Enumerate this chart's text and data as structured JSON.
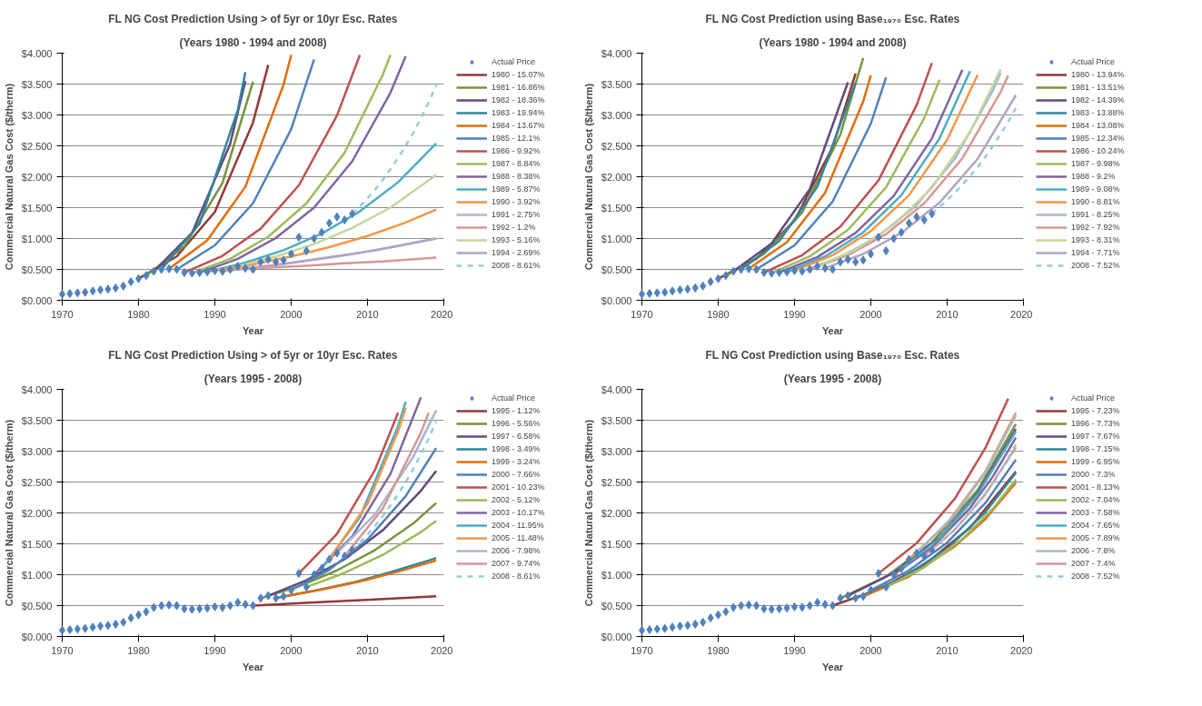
{
  "chart_data": [
    {
      "type": "line",
      "title": "FL NG Cost Prediction Using > of 5yr or 10yr Esc. Rates",
      "subtitle": "(Years 1980 - 1994 and 2008)",
      "xlabel": "Year",
      "ylabel": "Commercial Natural Gas Cost ($/therm)",
      "xlim": [
        1970,
        2020
      ],
      "xticks": [
        1970,
        1980,
        1990,
        2000,
        2010,
        2020
      ],
      "ylim": [
        0,
        4
      ],
      "yticks": [
        {
          "value": 0,
          "label": "$0.000"
        },
        {
          "value": 0.5,
          "label": "$0.500"
        },
        {
          "value": 1,
          "label": "$1.000"
        },
        {
          "value": 1.5,
          "label": "$1.500"
        },
        {
          "value": 2,
          "label": "$2.000"
        },
        {
          "value": 2.5,
          "label": "$2.500"
        },
        {
          "value": 3,
          "label": "$3.000"
        },
        {
          "value": 3.5,
          "label": "$3.500"
        },
        {
          "value": 4,
          "label": "$4.000"
        }
      ],
      "grid": "y",
      "legend": "right",
      "series": [
        {
          "name": "Actual Price",
          "type": "scatter",
          "marker": "diamond",
          "color": "#4f81bd",
          "x": [
            1970,
            1971,
            1972,
            1973,
            1974,
            1975,
            1976,
            1977,
            1978,
            1979,
            1980,
            1981,
            1982,
            1983,
            1984,
            1985,
            1986,
            1987,
            1988,
            1989,
            1990,
            1991,
            1992,
            1993,
            1994,
            1995,
            1996,
            1997,
            1998,
            1999,
            2000,
            2001,
            2002,
            2003,
            2004,
            2005,
            2006,
            2007,
            2008
          ],
          "values": [
            0.1,
            0.11,
            0.12,
            0.13,
            0.15,
            0.17,
            0.18,
            0.2,
            0.23,
            0.3,
            0.35,
            0.4,
            0.47,
            0.5,
            0.51,
            0.5,
            0.45,
            0.44,
            0.45,
            0.46,
            0.48,
            0.47,
            0.5,
            0.55,
            0.52,
            0.5,
            0.62,
            0.66,
            0.62,
            0.65,
            0.75,
            1.02,
            0.8,
            1.0,
            1.1,
            1.25,
            1.35,
            1.3,
            1.4
          ]
        },
        {
          "name": "1980 - 15.07%",
          "color": "#953735",
          "x": [
            1980,
            1985,
            1990,
            1995,
            1997
          ],
          "values": [
            0.35,
            0.71,
            1.43,
            2.88,
            3.81
          ]
        },
        {
          "name": "1981 - 16.86%",
          "color": "#77933c",
          "x": [
            1981,
            1986,
            1991,
            1995
          ],
          "values": [
            0.4,
            0.87,
            1.9,
            3.54
          ]
        },
        {
          "name": "1982 - 18.36%",
          "color": "#604a7b",
          "x": [
            1982,
            1987,
            1992,
            1994
          ],
          "values": [
            0.47,
            1.09,
            2.53,
            3.55
          ]
        },
        {
          "name": "1983 - 19.94%",
          "color": "#31859c",
          "x": [
            1983,
            1988,
            1993,
            1994
          ],
          "values": [
            0.5,
            1.24,
            3.08,
            3.69
          ]
        },
        {
          "name": "1984 - 13.67%",
          "color": "#e46c0a",
          "x": [
            1984,
            1989,
            1994,
            1999,
            2000
          ],
          "values": [
            0.51,
            0.97,
            1.84,
            3.49,
            3.97
          ]
        },
        {
          "name": "1985 - 12.1%",
          "color": "#4f81bd",
          "x": [
            1985,
            1990,
            1995,
            2000,
            2003
          ],
          "values": [
            0.5,
            0.89,
            1.57,
            2.77,
            3.9
          ]
        },
        {
          "name": "1986 - 9.92%",
          "color": "#c0504d",
          "x": [
            1986,
            1991,
            1996,
            2001,
            2006,
            2009
          ],
          "values": [
            0.45,
            0.72,
            1.16,
            1.86,
            2.99,
            3.97
          ]
        },
        {
          "name": "1987 - 8.84%",
          "color": "#9bbb59",
          "x": [
            1987,
            1992,
            1997,
            2002,
            2007,
            2012,
            2013
          ],
          "values": [
            0.44,
            0.67,
            1.03,
            1.57,
            2.39,
            3.65,
            3.97
          ]
        },
        {
          "name": "1988 - 8.38%",
          "color": "#8064a2",
          "x": [
            1988,
            1993,
            1998,
            2003,
            2008,
            2013,
            2015
          ],
          "values": [
            0.45,
            0.67,
            1.01,
            1.5,
            2.25,
            3.36,
            3.95
          ]
        },
        {
          "name": "1989 - 5.87%",
          "color": "#4bacc6",
          "x": [
            1989,
            1994,
            1999,
            2004,
            2009,
            2014,
            2019
          ],
          "values": [
            0.46,
            0.61,
            0.81,
            1.08,
            1.44,
            1.91,
            2.54
          ]
        },
        {
          "name": "1990 - 3.92%",
          "color": "#f79646",
          "x": [
            1990,
            1995,
            2000,
            2005,
            2010,
            2015,
            2019
          ],
          "values": [
            0.48,
            0.58,
            0.71,
            0.86,
            1.04,
            1.26,
            1.47
          ]
        },
        {
          "name": "1991 - 2.75%",
          "color": "#a5b6d6",
          "x": [
            1991,
            1996,
            2001,
            2006,
            2011,
            2016,
            2019
          ],
          "values": [
            0.47,
            0.54,
            0.62,
            0.71,
            0.81,
            0.93,
            1.0
          ]
        },
        {
          "name": "1992 - 1.2%",
          "color": "#d99694",
          "x": [
            1992,
            1997,
            2002,
            2007,
            2012,
            2019
          ],
          "values": [
            0.5,
            0.53,
            0.56,
            0.6,
            0.63,
            0.69
          ]
        },
        {
          "name": "1993 - 5.16%",
          "color": "#c3d69b",
          "x": [
            1993,
            1998,
            2003,
            2008,
            2013,
            2019
          ],
          "values": [
            0.55,
            0.71,
            0.91,
            1.17,
            1.5,
            2.03
          ]
        },
        {
          "name": "1994 - 2.69%",
          "color": "#b3a2c7",
          "x": [
            1994,
            1999,
            2004,
            2009,
            2014,
            2019
          ],
          "values": [
            0.52,
            0.59,
            0.68,
            0.77,
            0.88,
            1.0
          ]
        },
        {
          "name": "2008 - 8.61%",
          "color": "#93cddd",
          "line_style": "dashed",
          "x": [
            2008,
            2009,
            2010,
            2011,
            2012,
            2013,
            2014,
            2015,
            2016,
            2017,
            2018,
            2019
          ],
          "values": [
            1.4,
            1.52,
            1.65,
            1.79,
            1.95,
            2.12,
            2.3,
            2.5,
            2.71,
            2.95,
            3.2,
            3.48
          ]
        }
      ]
    },
    {
      "type": "line",
      "title": "FL NG Cost Prediction using Base₁₉₇₀ Esc. Rates",
      "subtitle": "(Years 1980 - 1994 and 2008)",
      "xlabel": "Year",
      "ylabel": "Commercial Natural Gas Cost ($/therm)",
      "xlim": [
        1970,
        2020
      ],
      "xticks": [
        1970,
        1980,
        1990,
        2000,
        2010,
        2020
      ],
      "ylim": [
        0,
        4
      ],
      "yticks": [
        {
          "value": 0,
          "label": "$0.000"
        },
        {
          "value": 0.5,
          "label": "$0.500"
        },
        {
          "value": 1,
          "label": "$1.000"
        },
        {
          "value": 1.5,
          "label": "$1.500"
        },
        {
          "value": 2,
          "label": "$2.000"
        },
        {
          "value": 2.5,
          "label": "$2.500"
        },
        {
          "value": 3,
          "label": "$3.000"
        },
        {
          "value": 3.5,
          "label": "$3.500"
        },
        {
          "value": 4,
          "label": "$4.000"
        }
      ],
      "grid": "y",
      "legend": "right",
      "series": [
        {
          "name": "Actual Price",
          "type": "scatter",
          "marker": "diamond",
          "color": "#4f81bd",
          "x": [
            1970,
            1971,
            1972,
            1973,
            1974,
            1975,
            1976,
            1977,
            1978,
            1979,
            1980,
            1981,
            1982,
            1983,
            1984,
            1985,
            1986,
            1987,
            1988,
            1989,
            1990,
            1991,
            1992,
            1993,
            1994,
            1995,
            1996,
            1997,
            1998,
            1999,
            2000,
            2001,
            2002,
            2003,
            2004,
            2005,
            2006,
            2007,
            2008
          ],
          "values": [
            0.1,
            0.11,
            0.12,
            0.13,
            0.15,
            0.17,
            0.18,
            0.2,
            0.23,
            0.3,
            0.35,
            0.4,
            0.47,
            0.5,
            0.51,
            0.5,
            0.45,
            0.44,
            0.45,
            0.46,
            0.48,
            0.47,
            0.5,
            0.55,
            0.52,
            0.5,
            0.62,
            0.66,
            0.62,
            0.65,
            0.75,
            1.02,
            0.8,
            1.0,
            1.1,
            1.25,
            1.35,
            1.3,
            1.4
          ]
        },
        {
          "name": "1980 - 13.94%",
          "color": "#953735",
          "x": [
            1980,
            1985,
            1990,
            1995,
            1998
          ],
          "values": [
            0.35,
            0.67,
            1.29,
            2.48,
            3.67
          ]
        },
        {
          "name": "1981 - 13.51%",
          "color": "#77933c",
          "x": [
            1981,
            1986,
            1991,
            1996,
            1999
          ],
          "values": [
            0.4,
            0.75,
            1.42,
            2.68,
            3.92
          ]
        },
        {
          "name": "1982 - 14.39%",
          "color": "#604a7b",
          "x": [
            1982,
            1987,
            1992,
            1997
          ],
          "values": [
            0.47,
            0.92,
            1.8,
            3.53
          ]
        },
        {
          "name": "1983 - 13.88%",
          "color": "#31859c",
          "x": [
            1983,
            1988,
            1993,
            1998
          ],
          "values": [
            0.5,
            0.96,
            1.84,
            3.52
          ]
        },
        {
          "name": "1984 - 13.08%",
          "color": "#e46c0a",
          "x": [
            1984,
            1989,
            1994,
            1999,
            2000
          ],
          "values": [
            0.51,
            0.94,
            1.74,
            3.22,
            3.64
          ]
        },
        {
          "name": "1985 - 12.34%",
          "color": "#4f81bd",
          "x": [
            1985,
            1990,
            1995,
            2000,
            2002
          ],
          "values": [
            0.5,
            0.89,
            1.6,
            2.86,
            3.61
          ]
        },
        {
          "name": "1986 - 10.24%",
          "color": "#c0504d",
          "x": [
            1986,
            1991,
            1996,
            2001,
            2006,
            2008
          ],
          "values": [
            0.45,
            0.73,
            1.19,
            1.94,
            3.16,
            3.84
          ]
        },
        {
          "name": "1987 - 9.98%",
          "color": "#9bbb59",
          "x": [
            1987,
            1992,
            1997,
            2002,
            2007,
            2009
          ],
          "values": [
            0.44,
            0.71,
            1.14,
            1.83,
            2.95,
            3.57
          ]
        },
        {
          "name": "1988 - 9.2%",
          "color": "#8064a2",
          "x": [
            1988,
            1993,
            1998,
            2003,
            2008,
            2012
          ],
          "values": [
            0.45,
            0.7,
            1.09,
            1.69,
            2.62,
            3.73
          ]
        },
        {
          "name": "1989 - 9.08%",
          "color": "#4bacc6",
          "x": [
            1989,
            1994,
            1999,
            2004,
            2009,
            2013
          ],
          "values": [
            0.46,
            0.71,
            1.1,
            1.7,
            2.62,
            3.71
          ]
        },
        {
          "name": "1990 - 8.81%",
          "color": "#f79646",
          "x": [
            1990,
            1995,
            2000,
            2005,
            2010,
            2014
          ],
          "values": [
            0.48,
            0.73,
            1.12,
            1.7,
            2.6,
            3.65
          ]
        },
        {
          "name": "1991 - 8.25%",
          "color": "#a5b6d6",
          "x": [
            1991,
            1996,
            2001,
            2006,
            2011,
            2016,
            2017
          ],
          "values": [
            0.47,
            0.7,
            1.04,
            1.54,
            2.29,
            3.4,
            3.68
          ]
        },
        {
          "name": "1992 - 7.92%",
          "color": "#d99694",
          "x": [
            1992,
            1997,
            2002,
            2007,
            2012,
            2017,
            2018
          ],
          "values": [
            0.5,
            0.73,
            1.07,
            1.57,
            2.3,
            3.37,
            3.64
          ]
        },
        {
          "name": "1993 - 8.31%",
          "color": "#c3d69b",
          "x": [
            1993,
            1998,
            2003,
            2008,
            2013,
            2017
          ],
          "values": [
            0.55,
            0.82,
            1.22,
            1.82,
            2.72,
            3.74
          ]
        },
        {
          "name": "1994 - 7.71%",
          "color": "#b3a2c7",
          "x": [
            1994,
            1999,
            2004,
            2009,
            2014,
            2019
          ],
          "values": [
            0.52,
            0.75,
            1.09,
            1.58,
            2.29,
            3.32
          ]
        },
        {
          "name": "2008 - 7.52%",
          "color": "#93cddd",
          "line_style": "dashed",
          "x": [
            2008,
            2009,
            2010,
            2011,
            2012,
            2013,
            2014,
            2015,
            2016,
            2017,
            2018,
            2019
          ],
          "values": [
            1.4,
            1.51,
            1.62,
            1.74,
            1.87,
            2.01,
            2.16,
            2.32,
            2.5,
            2.69,
            2.89,
            3.11
          ]
        }
      ]
    },
    {
      "type": "line",
      "title": "FL NG Cost Prediction Using > of 5yr or 10yr Esc. Rates",
      "subtitle": "(Years 1995 - 2008)",
      "xlabel": "Year",
      "ylabel": "Commercial Natural Gas Cost ($/therm)",
      "xlim": [
        1970,
        2020
      ],
      "xticks": [
        1970,
        1980,
        1990,
        2000,
        2010,
        2020
      ],
      "ylim": [
        0,
        4
      ],
      "yticks": [
        {
          "value": 0,
          "label": "$0.000"
        },
        {
          "value": 0.5,
          "label": "$0.500"
        },
        {
          "value": 1,
          "label": "$1.000"
        },
        {
          "value": 1.5,
          "label": "$1.500"
        },
        {
          "value": 2,
          "label": "$2.000"
        },
        {
          "value": 2.5,
          "label": "$2.500"
        },
        {
          "value": 3,
          "label": "$3.000"
        },
        {
          "value": 3.5,
          "label": "$3.500"
        },
        {
          "value": 4,
          "label": "$4.000"
        }
      ],
      "grid": "y",
      "legend": "right",
      "series": [
        {
          "name": "Actual Price",
          "type": "scatter",
          "marker": "diamond",
          "color": "#4f81bd",
          "x": [
            1970,
            1971,
            1972,
            1973,
            1974,
            1975,
            1976,
            1977,
            1978,
            1979,
            1980,
            1981,
            1982,
            1983,
            1984,
            1985,
            1986,
            1987,
            1988,
            1989,
            1990,
            1991,
            1992,
            1993,
            1994,
            1995,
            1996,
            1997,
            1998,
            1999,
            2000,
            2001,
            2002,
            2003,
            2004,
            2005,
            2006,
            2007,
            2008
          ],
          "values": [
            0.1,
            0.11,
            0.12,
            0.13,
            0.15,
            0.17,
            0.18,
            0.2,
            0.23,
            0.3,
            0.35,
            0.4,
            0.47,
            0.5,
            0.51,
            0.5,
            0.45,
            0.44,
            0.45,
            0.46,
            0.48,
            0.47,
            0.5,
            0.55,
            0.52,
            0.5,
            0.62,
            0.66,
            0.62,
            0.65,
            0.75,
            1.02,
            0.8,
            1.0,
            1.1,
            1.25,
            1.35,
            1.3,
            1.4
          ]
        },
        {
          "name": "1995 - 1.12%",
          "color": "#953735",
          "x": [
            1995,
            2003,
            2011,
            2019
          ],
          "values": [
            0.5,
            0.55,
            0.6,
            0.65
          ]
        },
        {
          "name": "1996 - 5.56%",
          "color": "#77933c",
          "x": [
            1996,
            2001,
            2006,
            2011,
            2016,
            2019
          ],
          "values": [
            0.62,
            0.81,
            1.07,
            1.4,
            1.83,
            2.16
          ]
        },
        {
          "name": "1997 - 6.58%",
          "color": "#604a7b",
          "x": [
            1997,
            2002,
            2007,
            2012,
            2017,
            2019
          ],
          "values": [
            0.66,
            0.91,
            1.25,
            1.72,
            2.36,
            2.68
          ]
        },
        {
          "name": "1998 - 3.49%",
          "color": "#31859c",
          "x": [
            1998,
            2003,
            2008,
            2013,
            2018,
            2019
          ],
          "values": [
            0.62,
            0.74,
            0.87,
            1.04,
            1.23,
            1.27
          ]
        },
        {
          "name": "1999 - 3.24%",
          "color": "#e46c0a",
          "x": [
            1999,
            2004,
            2009,
            2014,
            2019
          ],
          "values": [
            0.65,
            0.76,
            0.89,
            1.05,
            1.23
          ]
        },
        {
          "name": "2000 - 7.66%",
          "color": "#4f81bd",
          "x": [
            2000,
            2005,
            2010,
            2015,
            2019
          ],
          "values": [
            0.75,
            1.08,
            1.57,
            2.27,
            3.05
          ]
        },
        {
          "name": "2001 - 10.23%",
          "color": "#c0504d",
          "x": [
            2001,
            2006,
            2011,
            2014
          ],
          "values": [
            1.02,
            1.66,
            2.7,
            3.62
          ]
        },
        {
          "name": "2002 - 5.12%",
          "color": "#9bbb59",
          "x": [
            2002,
            2007,
            2012,
            2017,
            2019
          ],
          "values": [
            0.8,
            1.03,
            1.32,
            1.69,
            1.87
          ]
        },
        {
          "name": "2003 - 10.17%",
          "color": "#8064a2",
          "x": [
            2003,
            2008,
            2013,
            2017
          ],
          "values": [
            1.0,
            1.62,
            2.63,
            3.87
          ]
        },
        {
          "name": "2004 - 11.95%",
          "color": "#4bacc6",
          "x": [
            2004,
            2009,
            2014,
            2015
          ],
          "values": [
            1.1,
            1.93,
            3.4,
            3.8
          ]
        },
        {
          "name": "2005 - 11.48%",
          "color": "#f79646",
          "x": [
            2005,
            2010,
            2014,
            2015
          ],
          "values": [
            1.25,
            2.15,
            3.32,
            3.7
          ]
        },
        {
          "name": "2006 - 7.98%",
          "color": "#a5b6d6",
          "x": [
            2006,
            2011,
            2016,
            2019
          ],
          "values": [
            1.35,
            1.98,
            2.91,
            3.66
          ]
        },
        {
          "name": "2007 - 9.74%",
          "color": "#d99694",
          "x": [
            2007,
            2012,
            2017,
            2018
          ],
          "values": [
            1.3,
            2.07,
            3.3,
            3.62
          ]
        },
        {
          "name": "2008 - 8.61%",
          "color": "#93cddd",
          "line_style": "dashed",
          "x": [
            2008,
            2009,
            2010,
            2011,
            2012,
            2013,
            2014,
            2015,
            2016,
            2017,
            2018,
            2019
          ],
          "values": [
            1.4,
            1.52,
            1.65,
            1.79,
            1.95,
            2.12,
            2.3,
            2.5,
            2.71,
            2.95,
            3.2,
            3.48
          ]
        }
      ]
    },
    {
      "type": "line",
      "title": "FL NG Cost Prediction using Base₁₉₇₀ Esc. Rates",
      "subtitle": "(Years 1995 - 2008)",
      "xlabel": "Year",
      "ylabel": "Commercial Natural Gas Cost ($/therm)",
      "xlim": [
        1970,
        2020
      ],
      "xticks": [
        1970,
        1980,
        1990,
        2000,
        2010,
        2020
      ],
      "ylim": [
        0,
        4
      ],
      "yticks": [
        {
          "value": 0,
          "label": "$0.000"
        },
        {
          "value": 0.5,
          "label": "$0.500"
        },
        {
          "value": 1,
          "label": "$1.000"
        },
        {
          "value": 1.5,
          "label": "$1.500"
        },
        {
          "value": 2,
          "label": "$2.000"
        },
        {
          "value": 2.5,
          "label": "$2.500"
        },
        {
          "value": 3,
          "label": "$3.000"
        },
        {
          "value": 3.5,
          "label": "$3.500"
        },
        {
          "value": 4,
          "label": "$4.000"
        }
      ],
      "grid": "y",
      "legend": "right",
      "series": [
        {
          "name": "Actual Price",
          "type": "scatter",
          "marker": "diamond",
          "color": "#4f81bd",
          "x": [
            1970,
            1971,
            1972,
            1973,
            1974,
            1975,
            1976,
            1977,
            1978,
            1979,
            1980,
            1981,
            1982,
            1983,
            1984,
            1985,
            1986,
            1987,
            1988,
            1989,
            1990,
            1991,
            1992,
            1993,
            1994,
            1995,
            1996,
            1997,
            1998,
            1999,
            2000,
            2001,
            2002,
            2003,
            2004,
            2005,
            2006,
            2007,
            2008
          ],
          "values": [
            0.1,
            0.11,
            0.12,
            0.13,
            0.15,
            0.17,
            0.18,
            0.2,
            0.23,
            0.3,
            0.35,
            0.4,
            0.47,
            0.5,
            0.51,
            0.5,
            0.45,
            0.44,
            0.45,
            0.46,
            0.48,
            0.47,
            0.5,
            0.55,
            0.52,
            0.5,
            0.62,
            0.66,
            0.62,
            0.65,
            0.75,
            1.02,
            0.8,
            1.0,
            1.1,
            1.25,
            1.35,
            1.3,
            1.4
          ]
        },
        {
          "name": "1995 - 7.23%",
          "color": "#953735",
          "x": [
            1995,
            2001,
            2007,
            2013,
            2019
          ],
          "values": [
            0.5,
            0.76,
            1.16,
            1.76,
            2.67
          ]
        },
        {
          "name": "1996 - 7.73%",
          "color": "#77933c",
          "x": [
            1996,
            2002,
            2008,
            2014,
            2019
          ],
          "values": [
            0.62,
            0.97,
            1.52,
            2.37,
            3.44
          ]
        },
        {
          "name": "1997 - 7.67%",
          "color": "#604a7b",
          "x": [
            1997,
            2003,
            2009,
            2014,
            2019
          ],
          "values": [
            0.66,
            1.03,
            1.6,
            2.32,
            3.36
          ]
        },
        {
          "name": "1998 - 7.15%",
          "color": "#31859c",
          "x": [
            1998,
            2004,
            2010,
            2015,
            2019
          ],
          "values": [
            0.62,
            0.94,
            1.42,
            2.01,
            2.65
          ]
        },
        {
          "name": "1999 - 6.95%",
          "color": "#e46c0a",
          "x": [
            1999,
            2005,
            2011,
            2015,
            2019
          ],
          "values": [
            0.65,
            0.97,
            1.46,
            1.9,
            2.49
          ]
        },
        {
          "name": "2000 - 7.3%",
          "color": "#4f81bd",
          "x": [
            2000,
            2005,
            2010,
            2015,
            2019
          ],
          "values": [
            0.75,
            1.07,
            1.52,
            2.16,
            2.86
          ]
        },
        {
          "name": "2001 - 8.13%",
          "color": "#c0504d",
          "x": [
            2001,
            2006,
            2011,
            2015,
            2018
          ],
          "values": [
            1.02,
            1.51,
            2.23,
            3.05,
            3.85
          ]
        },
        {
          "name": "2002 - 7.04%",
          "color": "#9bbb59",
          "x": [
            2002,
            2007,
            2012,
            2016,
            2019
          ],
          "values": [
            0.8,
            1.12,
            1.58,
            2.07,
            2.54
          ]
        },
        {
          "name": "2003 - 7.58%",
          "color": "#8064a2",
          "x": [
            2003,
            2008,
            2013,
            2016,
            2019
          ],
          "values": [
            1.0,
            1.44,
            2.08,
            2.59,
            3.22
          ]
        },
        {
          "name": "2004 - 7.65%",
          "color": "#4bacc6",
          "x": [
            2004,
            2009,
            2014,
            2019
          ],
          "values": [
            1.1,
            1.59,
            2.3,
            3.32
          ]
        },
        {
          "name": "2005 - 7.89%",
          "color": "#f79646",
          "x": [
            2005,
            2010,
            2015,
            2019
          ],
          "values": [
            1.25,
            1.83,
            2.67,
            3.62
          ]
        },
        {
          "name": "2006 - 7.8%",
          "color": "#a5b6d6",
          "x": [
            2006,
            2011,
            2015,
            2019
          ],
          "values": [
            1.35,
            1.97,
            2.65,
            3.58
          ]
        },
        {
          "name": "2007 - 7.4%",
          "color": "#d99694",
          "x": [
            2007,
            2011,
            2015,
            2019
          ],
          "values": [
            1.3,
            1.73,
            2.3,
            3.06
          ]
        },
        {
          "name": "2008 - 7.52%",
          "color": "#93cddd",
          "line_style": "dashed",
          "x": [
            2008,
            2009,
            2010,
            2011,
            2012,
            2013,
            2014,
            2015,
            2016,
            2017,
            2018,
            2019
          ],
          "values": [
            1.4,
            1.51,
            1.62,
            1.74,
            1.87,
            2.01,
            2.16,
            2.32,
            2.5,
            2.69,
            2.89,
            3.11
          ]
        }
      ]
    }
  ]
}
